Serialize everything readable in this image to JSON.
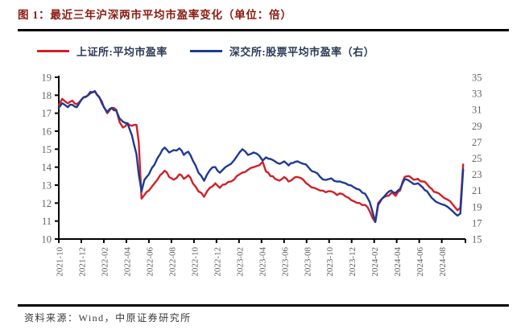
{
  "figure": {
    "title": "图 1：最近三年沪深两市平均市盈率变化（单位：倍）",
    "source": "资料来源：Wind，中原证券研究所"
  },
  "legend": [
    {
      "label": "上证所:平均市盈率",
      "color": "#cf2128"
    },
    {
      "label": "深交所:股票平均市盈率（右）",
      "color": "#1f3a93"
    }
  ],
  "colors": {
    "sse_line": "#cf2128",
    "szse_line": "#1f3a93",
    "axis_line": "#000000",
    "tick_label": "#5f6266",
    "title_text": "#8a1a10",
    "legend_text": "#2c3a57"
  },
  "chart_data": {
    "type": "line",
    "title": "最近三年沪深两市平均市盈率变化（单位：倍）",
    "x_unit": "months since 2021-10",
    "x_tick_labels": [
      "2021-10",
      "2021-12",
      "2022-02",
      "2022-04",
      "2022-06",
      "2022-08",
      "2022-10",
      "2022-12",
      "2023-02",
      "2023-04",
      "2023-06",
      "2023-08",
      "2023-10",
      "2023-12",
      "2024-02",
      "2024-04",
      "2024-06",
      "2024-08"
    ],
    "x_tick_positions": [
      0,
      2,
      4,
      6,
      8,
      10,
      12,
      14,
      16,
      18,
      20,
      22,
      24,
      26,
      28,
      30,
      32,
      34
    ],
    "x_domain": [
      0,
      36.1
    ],
    "left_axis": {
      "min": 10,
      "max": 19,
      "step": 1,
      "ticks": [
        "19",
        "18",
        "17",
        "16",
        "15",
        "14",
        "13",
        "12",
        "11",
        "10"
      ]
    },
    "right_axis": {
      "min": 15,
      "max": 35,
      "step": 2,
      "ticks": [
        "35",
        "33",
        "31",
        "29",
        "27",
        "25",
        "23",
        "21",
        "19",
        "17",
        "15"
      ]
    },
    "legend_position": "top",
    "grid": false,
    "t": [
      0,
      0.3,
      0.8,
      1.2,
      1.6,
      2.0,
      2.4,
      2.8,
      3.2,
      3.6,
      4.0,
      4.3,
      4.7,
      5.1,
      5.4,
      5.7,
      6.1,
      6.5,
      6.9,
      7.1,
      7.35,
      7.6,
      8.0,
      8.5,
      9.0,
      9.4,
      9.8,
      10.2,
      10.7,
      11.1,
      11.5,
      11.9,
      12.4,
      12.9,
      13.4,
      13.9,
      14.3,
      14.8,
      15.3,
      15.8,
      16.3,
      16.8,
      17.3,
      17.8,
      18.1,
      18.4,
      18.8,
      19.2,
      19.6,
      20.0,
      20.4,
      20.8,
      21.2,
      21.7,
      22.2,
      22.7,
      23.2,
      23.7,
      24.2,
      24.7,
      25.2,
      25.7,
      26.2,
      26.7,
      27.2,
      27.6,
      28.1,
      28.35,
      28.7,
      29.1,
      29.5,
      29.9,
      30.3,
      30.7,
      31.1,
      31.5,
      31.9,
      32.3,
      32.7,
      33.1,
      33.5,
      34.0,
      34.5,
      35.0,
      35.4,
      35.65,
      35.9
    ],
    "series": [
      {
        "name": "上证所:平均市盈率",
        "axis": "left",
        "color": "#cf2128",
        "values": [
          17.45,
          17.8,
          17.55,
          17.7,
          17.5,
          17.75,
          17.9,
          18.1,
          18.2,
          17.9,
          17.35,
          17.0,
          17.3,
          17.2,
          16.5,
          16.2,
          16.45,
          16.3,
          16.35,
          15.4,
          12.25,
          12.45,
          12.7,
          13.1,
          13.55,
          13.8,
          13.45,
          13.3,
          13.6,
          13.35,
          13.55,
          13.1,
          12.65,
          12.35,
          12.85,
          13.1,
          12.85,
          13.05,
          13.2,
          13.5,
          13.7,
          13.85,
          14.0,
          14.1,
          14.3,
          13.75,
          13.5,
          13.35,
          13.25,
          13.45,
          13.2,
          13.35,
          13.45,
          13.3,
          13.0,
          12.85,
          12.7,
          12.6,
          12.65,
          12.45,
          12.5,
          12.3,
          12.1,
          12.0,
          11.9,
          11.55,
          10.95,
          12.0,
          12.25,
          12.4,
          12.55,
          12.4,
          12.7,
          13.45,
          13.5,
          13.3,
          13.35,
          13.2,
          13.05,
          12.8,
          12.6,
          12.4,
          12.2,
          11.9,
          11.6,
          11.75,
          14.15
        ]
      },
      {
        "name": "深交所:股票平均市盈率（右）",
        "axis": "right",
        "color": "#1f3a93",
        "values": [
          31.2,
          31.8,
          31.3,
          31.6,
          31.3,
          32.2,
          32.6,
          33.2,
          33.3,
          32.5,
          31.3,
          30.7,
          31.2,
          30.9,
          29.9,
          29.5,
          29.3,
          27.8,
          25.5,
          23.0,
          20.9,
          22.3,
          23.0,
          24.2,
          25.5,
          26.3,
          25.7,
          26.0,
          26.2,
          25.4,
          25.8,
          24.7,
          23.2,
          22.2,
          23.5,
          23.9,
          23.2,
          23.9,
          24.3,
          25.2,
          26.1,
          25.4,
          25.7,
          25.3,
          24.7,
          25.1,
          24.9,
          24.6,
          24.3,
          24.6,
          24.1,
          24.4,
          24.6,
          24.3,
          23.8,
          23.3,
          22.7,
          22.3,
          22.5,
          22.1,
          22.0,
          21.7,
          21.4,
          21.1,
          20.6,
          19.6,
          17.1,
          19.2,
          20.0,
          20.6,
          21.0,
          20.7,
          21.2,
          22.4,
          22.2,
          21.8,
          21.9,
          21.4,
          20.9,
          20.1,
          19.6,
          19.3,
          19.0,
          18.4,
          17.9,
          18.15,
          23.6
        ]
      }
    ]
  }
}
